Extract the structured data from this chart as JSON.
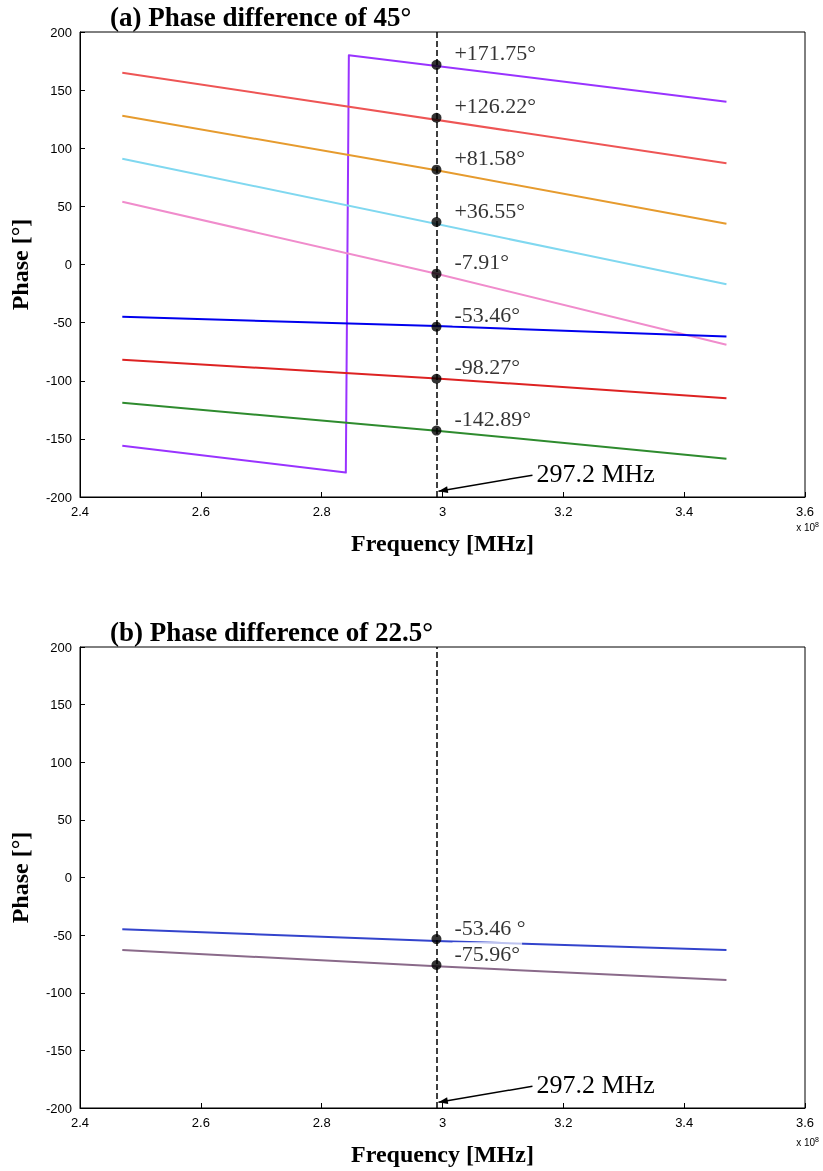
{
  "chart_data": [
    {
      "type": "line",
      "title": "(a) Phase difference of 45°",
      "xlabel": "Frequency [MHz]",
      "ylabel": "Phase [°]",
      "xlim": [
        2.4,
        3.6
      ],
      "xticks": [
        2.4,
        2.6,
        2.8,
        3,
        3.2,
        3.4,
        3.6
      ],
      "ylim": [
        -200,
        200
      ],
      "yticks": [
        -200,
        -150,
        -100,
        -50,
        0,
        50,
        100,
        150,
        200
      ],
      "series": [
        {
          "color": "#9933ff",
          "x": [
            2.47,
            2.84,
            2.845,
            3.47
          ],
          "values": [
            -156,
            -179,
            180,
            140
          ]
        },
        {
          "color": "#ee5555",
          "x": [
            2.47,
            3.47
          ],
          "values": [
            165,
            87
          ]
        },
        {
          "color": "#e69b2e",
          "x": [
            2.47,
            2.99,
            3.47
          ],
          "values": [
            128,
            81,
            35
          ]
        },
        {
          "color": "#80d8f0",
          "x": [
            2.47,
            3.47
          ],
          "values": [
            91,
            -17
          ]
        },
        {
          "color": "#f08ccc",
          "x": [
            2.47,
            2.99,
            3.47
          ],
          "values": [
            54,
            -8,
            -69
          ]
        },
        {
          "color": "#0000ee",
          "x": [
            2.47,
            2.99,
            3.47
          ],
          "values": [
            -45,
            -53,
            -62
          ]
        },
        {
          "color": "#dd2222",
          "x": [
            2.47,
            2.99,
            3.47
          ],
          "values": [
            -82,
            -98,
            -115
          ]
        },
        {
          "color": "#2e8b2e",
          "x": [
            2.47,
            2.99,
            3.47
          ],
          "values": [
            -119,
            -143,
            -167
          ]
        },
        {
          "type": "scatter",
          "color": "#000000",
          "x": [
            2.99,
            2.99,
            2.99,
            2.99,
            2.99,
            2.99,
            2.99,
            2.99
          ],
          "values": [
            171.75,
            126.22,
            81.58,
            36.55,
            -7.91,
            -53.46,
            -98.27,
            -142.89
          ],
          "value_labels": [
            "+171.75°",
            "+126.22°",
            "+81.58°",
            "+36.55°",
            "-7.91°",
            "-53.46°",
            "-98.27°",
            "-142.89°"
          ]
        }
      ],
      "ref_lines": [
        {
          "axis": "x",
          "value": 2.99,
          "line_style": "dashed",
          "color": "#000000"
        }
      ],
      "annotations": [
        {
          "text": "297.2 MHz",
          "x": 2.99,
          "y": -195
        },
        "x 10$^{8}$"
      ]
    },
    {
      "type": "line",
      "title": "(b) Phase difference of 22.5°",
      "xlabel": "Frequency [MHz]",
      "ylabel": "Phase [°]",
      "xlim": [
        2.4,
        3.6
      ],
      "xticks": [
        2.4,
        2.6,
        2.8,
        3,
        3.2,
        3.4,
        3.6
      ],
      "ylim": [
        -200,
        200
      ],
      "yticks": [
        -200,
        -150,
        -100,
        -50,
        0,
        50,
        100,
        150,
        200
      ],
      "series": [
        {
          "color": "#3344cc",
          "x": [
            2.47,
            2.99,
            3.47
          ],
          "values": [
            -45,
            -55,
            -63
          ]
        },
        {
          "color": "#8a6a8a",
          "x": [
            2.47,
            2.99,
            3.47
          ],
          "values": [
            -63,
            -77,
            -89
          ]
        },
        {
          "type": "scatter",
          "color": "#000000",
          "x": [
            2.99,
            2.99
          ],
          "values": [
            -53.46,
            -75.96
          ],
          "value_labels": [
            "-53.46 °",
            "-75.96°"
          ]
        }
      ],
      "ref_lines": [
        {
          "axis": "x",
          "value": 2.99,
          "line_style": "dashed",
          "color": "#000000"
        }
      ],
      "annotations": [
        {
          "text": "297.2 MHz",
          "x": 2.99,
          "y": -195
        },
        "x 10$^{8}$"
      ]
    }
  ]
}
